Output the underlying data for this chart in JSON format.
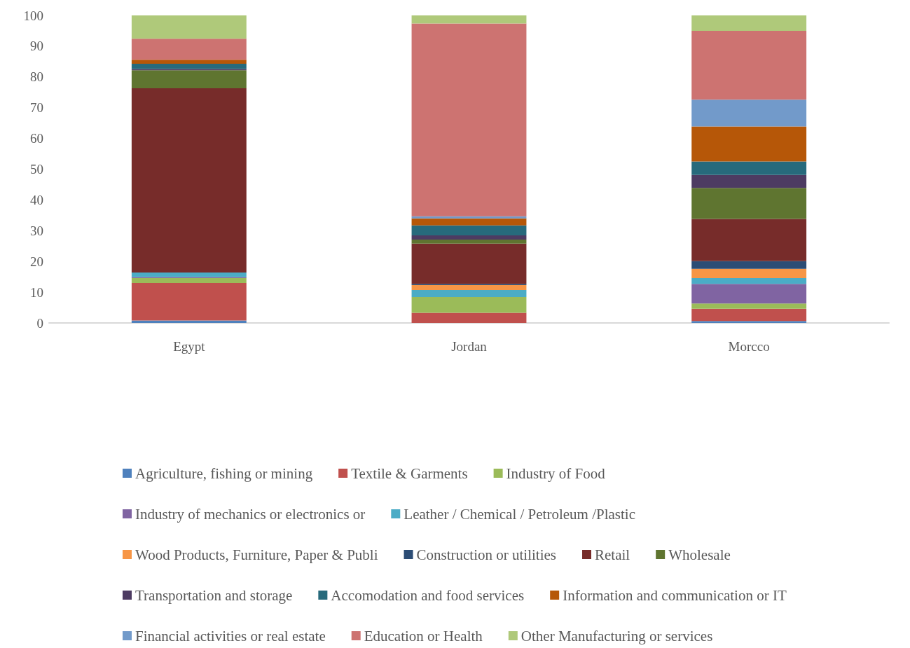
{
  "chart_data": {
    "type": "bar",
    "stacked": true,
    "categories": [
      "Egypt",
      "Jordan",
      "Morcco"
    ],
    "ylim": [
      0,
      100
    ],
    "yticks": [
      0,
      10,
      20,
      30,
      40,
      50,
      60,
      70,
      80,
      90,
      100
    ],
    "grid": false,
    "legend": "bottom",
    "series": [
      {
        "name": "Agriculture, fishing or mining",
        "color": "#4f81bd",
        "values": [
          0.8,
          0,
          0.6
        ]
      },
      {
        "name": "Textile & Garments",
        "color": "#c0504d",
        "values": [
          12.2,
          3.3,
          4.0
        ]
      },
      {
        "name": "Industry of Food",
        "color": "#9bbb59",
        "values": [
          1.6,
          5.1,
          1.7
        ]
      },
      {
        "name": "Industry of mechanics or electronics or",
        "color": "#8064a2",
        "values": [
          0.3,
          0,
          6.4
        ]
      },
      {
        "name": "Leather / Chemical / Petroleum /Plastic",
        "color": "#4bacc6",
        "values": [
          1.5,
          2.3,
          1.9
        ]
      },
      {
        "name": "Wood Products, Furniture, Paper & Publi",
        "color": "#f79646",
        "values": [
          0,
          1.6,
          3.0
        ]
      },
      {
        "name": "Construction or utilities",
        "color": "#2c4d75",
        "values": [
          0,
          0.4,
          2.5
        ]
      },
      {
        "name": "Retail",
        "color": "#772c2a",
        "values": [
          59.9,
          13.1,
          13.7
        ]
      },
      {
        "name": "Wholesale",
        "color": "#5f7530",
        "values": [
          5.9,
          1.3,
          10.1
        ]
      },
      {
        "name": "Transportation and storage",
        "color": "#4d3b62",
        "values": [
          0.4,
          1.4,
          4.2
        ]
      },
      {
        "name": "Accomodation and food services",
        "color": "#276a7c",
        "values": [
          1.7,
          3.2,
          4.4
        ]
      },
      {
        "name": "Information and communication or IT",
        "color": "#b65708",
        "values": [
          1.3,
          2.3,
          11.4
        ]
      },
      {
        "name": "Financial activities or real estate",
        "color": "#729aca",
        "values": [
          0,
          0.7,
          8.7
        ]
      },
      {
        "name": "Education or Health",
        "color": "#cd7371",
        "values": [
          6.8,
          62.7,
          22.4
        ]
      },
      {
        "name": "Other Manufacturing or services",
        "color": "#afc97a",
        "values": [
          7.6,
          2.6,
          5.0
        ]
      }
    ]
  }
}
